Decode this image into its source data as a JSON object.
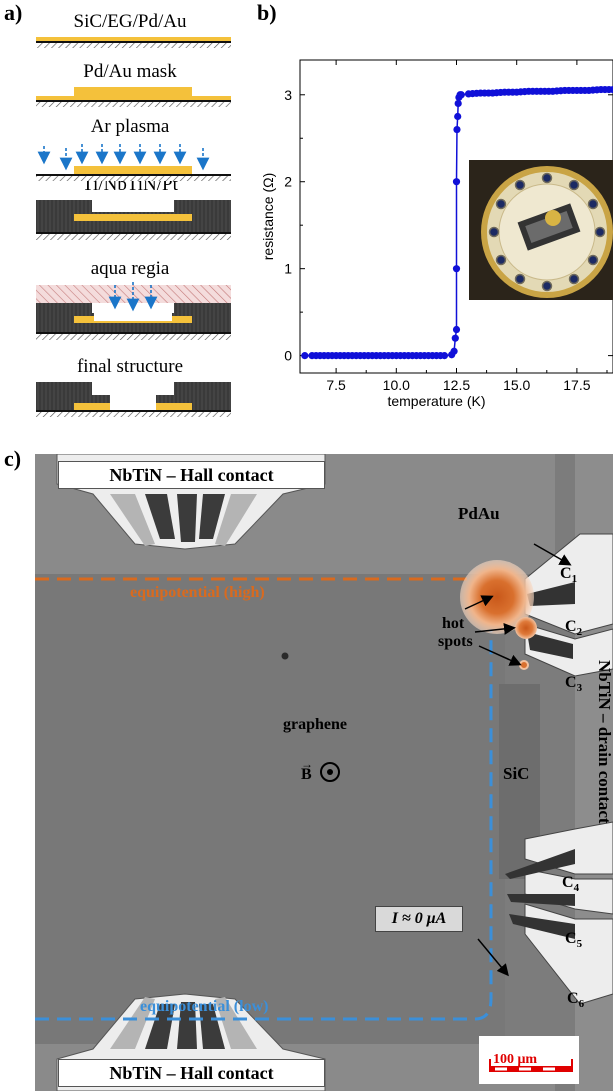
{
  "panel_a": {
    "label": "a)",
    "steps": [
      {
        "label": "SiC/EG/Pd/Au"
      },
      {
        "label": "Pd/Au mask"
      },
      {
        "label": "Ar plasma"
      },
      {
        "label": "Ti/NbTiN/Pt"
      },
      {
        "label": "aqua regia"
      },
      {
        "label": "final structure"
      }
    ]
  },
  "panel_b": {
    "label": "b)"
  },
  "chart_data": {
    "type": "scatter",
    "xlabel": "temperature (K)",
    "ylabel": "resistance (Ω)",
    "xlim": [
      6,
      19
    ],
    "ylim": [
      -0.2,
      3.4
    ],
    "xticks": [
      "7.5",
      "10.0",
      "12.5",
      "15.0",
      "17.5"
    ],
    "yticks": [
      "0",
      "1",
      "2",
      "3"
    ],
    "series": [
      {
        "color": "#1010d8",
        "x": [
          6.2,
          6.5,
          7.0,
          7.5,
          8.0,
          8.5,
          9.0,
          9.5,
          10.0,
          10.5,
          11.0,
          11.5,
          12.0,
          12.3,
          12.4,
          12.45,
          12.5,
          12.5,
          12.5,
          12.52,
          12.55,
          12.57,
          12.6,
          12.65,
          12.7,
          13.0,
          13.5,
          14.0,
          14.5,
          15.0,
          15.5,
          16.0,
          16.5,
          17.0,
          17.5,
          18.0,
          18.5,
          19.0
        ],
        "y": [
          0.0,
          0.0,
          0.0,
          0.0,
          0.0,
          0.0,
          0.0,
          0.0,
          0.0,
          0.0,
          0.0,
          0.0,
          0.0,
          0.01,
          0.05,
          0.2,
          0.3,
          1.0,
          2.0,
          2.6,
          2.75,
          2.9,
          2.97,
          3.0,
          3.0,
          3.01,
          3.02,
          3.02,
          3.03,
          3.03,
          3.04,
          3.04,
          3.04,
          3.05,
          3.05,
          3.05,
          3.06,
          3.06
        ]
      }
    ]
  },
  "panel_c": {
    "label": "c)",
    "hall_contact_top": "NbTiN – Hall contact",
    "hall_contact_bottom": "NbTiN – Hall contact",
    "drain_contact": "NbTiN – drain contact",
    "pdau": "PdAu",
    "equipotential_high": "equipotential (high)",
    "equipotential_low": "equipotential (low)",
    "hot_spots_line1": "hot",
    "hot_spots_line2": "spots",
    "graphene": "graphene",
    "b_field": "B",
    "sic": "SiC",
    "current": "I ≈ 0 μA",
    "contacts": [
      {
        "letter": "C",
        "sub": "1"
      },
      {
        "letter": "C",
        "sub": "2"
      },
      {
        "letter": "C",
        "sub": "3"
      },
      {
        "letter": "C",
        "sub": "4"
      },
      {
        "letter": "C",
        "sub": "5"
      },
      {
        "letter": "C",
        "sub": "6"
      }
    ],
    "scale_bar": "100 μm",
    "colors": {
      "high": "#d96a1e",
      "low": "#3b8fd9",
      "scale": "#e00000"
    }
  }
}
